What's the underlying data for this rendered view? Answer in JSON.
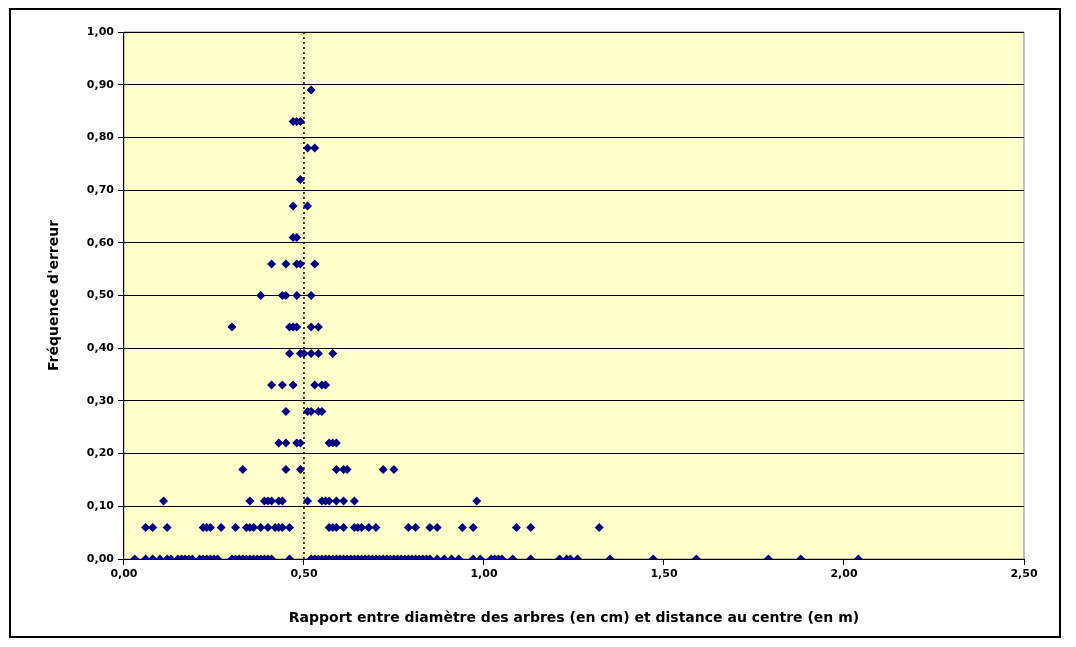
{
  "chart_data": {
    "type": "scatter",
    "xlabel": "Rapport entre diamètre des arbres (en cm) et distance au centre (en m)",
    "ylabel": "Fréquence d'erreur",
    "xlim": [
      0,
      2.5
    ],
    "ylim": [
      0,
      1
    ],
    "xticks": [
      {
        "value": 0,
        "label": "0,00"
      },
      {
        "value": 0.5,
        "label": "0,50"
      },
      {
        "value": 1,
        "label": "1,00"
      },
      {
        "value": 1.5,
        "label": "1,50"
      },
      {
        "value": 2,
        "label": "2,00"
      },
      {
        "value": 2.5,
        "label": "2,50"
      }
    ],
    "yticks": [
      {
        "value": 0,
        "label": "0,00"
      },
      {
        "value": 0.1,
        "label": "0,10"
      },
      {
        "value": 0.2,
        "label": "0,20"
      },
      {
        "value": 0.3,
        "label": "0,30"
      },
      {
        "value": 0.4,
        "label": "0,40"
      },
      {
        "value": 0.5,
        "label": "0,50"
      },
      {
        "value": 0.6,
        "label": "0,60"
      },
      {
        "value": 0.7,
        "label": "0,70"
      },
      {
        "value": 0.8,
        "label": "0,80"
      },
      {
        "value": 0.9,
        "label": "0,90"
      },
      {
        "value": 1,
        "label": "1,00"
      }
    ],
    "grid": "y",
    "legend": false,
    "marker": "diamond",
    "ref_lines": [
      {
        "axis": "x",
        "value": 0.5,
        "color": "#000000",
        "line_style": "dotted"
      }
    ],
    "series": [
      {
        "color": "#000080",
        "x": [
          0.52,
          0.47,
          0.48,
          0.49,
          0.51,
          0.53,
          0.49,
          0.47,
          0.51,
          0.47,
          0.48,
          0.41,
          0.45,
          0.48,
          0.49,
          0.53,
          0.38,
          0.44,
          0.45,
          0.48,
          0.52,
          0.3,
          0.46,
          0.47,
          0.48,
          0.52,
          0.54,
          0.46,
          0.49,
          0.5,
          0.52,
          0.54,
          0.58,
          0.41,
          0.44,
          0.47,
          0.53,
          0.55,
          0.56,
          0.45,
          0.51,
          0.52,
          0.54,
          0.55,
          0.43,
          0.45,
          0.48,
          0.49,
          0.57,
          0.58,
          0.59,
          0.33,
          0.45,
          0.49,
          0.59,
          0.61,
          0.62,
          0.72,
          0.75,
          0.11,
          0.35,
          0.39,
          0.4,
          0.41,
          0.43,
          0.44,
          0.51,
          0.55,
          0.56,
          0.57,
          0.59,
          0.61,
          0.64,
          0.98,
          0.06,
          0.08,
          0.12,
          0.22,
          0.23,
          0.24,
          0.27,
          0.31,
          0.34,
          0.35,
          0.36,
          0.38,
          0.4,
          0.42,
          0.43,
          0.44,
          0.46,
          0.57,
          0.58,
          0.59,
          0.61,
          0.64,
          0.65,
          0.66,
          0.68,
          0.7,
          0.79,
          0.81,
          0.85,
          0.87,
          0.94,
          0.97,
          1.09,
          1.13,
          1.32,
          0.03,
          0.06,
          0.08,
          0.1,
          0.12,
          0.13,
          0.15,
          0.16,
          0.17,
          0.18,
          0.19,
          0.21,
          0.22,
          0.23,
          0.24,
          0.25,
          0.26,
          0.3,
          0.31,
          0.32,
          0.33,
          0.34,
          0.35,
          0.36,
          0.37,
          0.38,
          0.39,
          0.4,
          0.41,
          0.46,
          0.52,
          0.53,
          0.54,
          0.55,
          0.56,
          0.57,
          0.58,
          0.59,
          0.6,
          0.61,
          0.62,
          0.63,
          0.64,
          0.65,
          0.66,
          0.67,
          0.68,
          0.69,
          0.7,
          0.71,
          0.72,
          0.73,
          0.74,
          0.75,
          0.76,
          0.77,
          0.78,
          0.79,
          0.8,
          0.81,
          0.82,
          0.83,
          0.84,
          0.85,
          0.87,
          0.89,
          0.91,
          0.93,
          0.97,
          0.99,
          1.02,
          1.03,
          1.04,
          1.05,
          1.08,
          1.13,
          1.21,
          1.23,
          1.24,
          1.26,
          1.35,
          1.47,
          1.59,
          1.79,
          1.88,
          2.04
        ],
        "values": [
          0.89,
          0.83,
          0.83,
          0.83,
          0.78,
          0.78,
          0.72,
          0.67,
          0.67,
          0.61,
          0.61,
          0.56,
          0.56,
          0.56,
          0.56,
          0.56,
          0.5,
          0.5,
          0.5,
          0.5,
          0.5,
          0.44,
          0.44,
          0.44,
          0.44,
          0.44,
          0.44,
          0.39,
          0.39,
          0.39,
          0.39,
          0.39,
          0.39,
          0.33,
          0.33,
          0.33,
          0.33,
          0.33,
          0.33,
          0.28,
          0.28,
          0.28,
          0.28,
          0.28,
          0.22,
          0.22,
          0.22,
          0.22,
          0.22,
          0.22,
          0.22,
          0.17,
          0.17,
          0.17,
          0.17,
          0.17,
          0.17,
          0.17,
          0.17,
          0.11,
          0.11,
          0.11,
          0.11,
          0.11,
          0.11,
          0.11,
          0.11,
          0.11,
          0.11,
          0.11,
          0.11,
          0.11,
          0.11,
          0.11,
          0.06,
          0.06,
          0.06,
          0.06,
          0.06,
          0.06,
          0.06,
          0.06,
          0.06,
          0.06,
          0.06,
          0.06,
          0.06,
          0.06,
          0.06,
          0.06,
          0.06,
          0.06,
          0.06,
          0.06,
          0.06,
          0.06,
          0.06,
          0.06,
          0.06,
          0.06,
          0.06,
          0.06,
          0.06,
          0.06,
          0.06,
          0.06,
          0.06,
          0.06,
          0.06,
          0,
          0,
          0,
          0,
          0,
          0,
          0,
          0,
          0,
          0,
          0,
          0,
          0,
          0,
          0,
          0,
          0,
          0,
          0,
          0,
          0,
          0,
          0,
          0,
          0,
          0,
          0,
          0,
          0,
          0,
          0,
          0,
          0,
          0,
          0,
          0,
          0,
          0,
          0,
          0,
          0,
          0,
          0,
          0,
          0,
          0,
          0,
          0,
          0,
          0,
          0,
          0,
          0,
          0,
          0,
          0,
          0,
          0,
          0,
          0,
          0,
          0,
          0,
          0,
          0,
          0,
          0,
          0,
          0,
          0,
          0,
          0,
          0,
          0,
          0,
          0,
          0,
          0,
          0,
          0,
          0,
          0,
          0,
          0,
          0,
          0
        ]
      }
    ]
  }
}
